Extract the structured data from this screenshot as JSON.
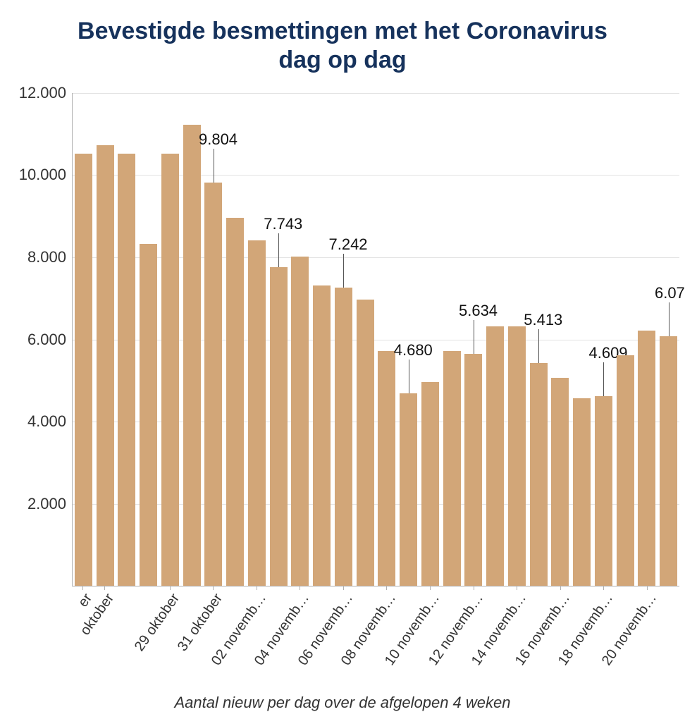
{
  "chart": {
    "type": "bar",
    "title_lines": [
      "Bevestigde besmettingen met het Coronavirus",
      "dag op dag"
    ],
    "title_color": "#16325c",
    "title_fontsize": 34,
    "title_weight": "700",
    "subtitle": "Aantal nieuw per dag over de afgelopen 4 weken",
    "subtitle_fontsize": 22,
    "subtitle_italic": true,
    "background_color": "#ffffff",
    "bar_color": "#d2a678",
    "grid_color": "#e3e3e3",
    "axis_color": "#b0b0b0",
    "label_color": "#333333",
    "value_label_color": "#111111",
    "value_label_fontsize": 22,
    "ylim": [
      0,
      12000
    ],
    "yticks": [
      2000,
      4000,
      6000,
      8000,
      10000,
      12000
    ],
    "ytick_labels": [
      "2.000",
      "4.000",
      "6.000",
      "8.000",
      "10.000",
      "12.000"
    ],
    "ytick_fontsize": 22,
    "xtick_fontsize": 20,
    "xtick_rotation_deg": -55,
    "bars": [
      {
        "x": "er",
        "value": 10500,
        "show_x": true
      },
      {
        "x": "oktober",
        "value": 10700,
        "show_x": true
      },
      {
        "x": "",
        "value": 10500,
        "show_x": false
      },
      {
        "x": "",
        "value": 8300,
        "show_x": false
      },
      {
        "x": "29 oktober",
        "value": 10500,
        "show_x": true
      },
      {
        "x": "",
        "value": 11200,
        "show_x": false
      },
      {
        "x": "31 oktober",
        "value": 9804,
        "show_x": true,
        "callout": "9.804"
      },
      {
        "x": "",
        "value": 8950,
        "show_x": false
      },
      {
        "x": "02 novemb…",
        "value": 8400,
        "show_x": true
      },
      {
        "x": "",
        "value": 7743,
        "show_x": false,
        "callout": "7.743"
      },
      {
        "x": "04 novemb…",
        "value": 8000,
        "show_x": true
      },
      {
        "x": "",
        "value": 7300,
        "show_x": false
      },
      {
        "x": "06 novemb…",
        "value": 7242,
        "show_x": true,
        "callout": "7.242"
      },
      {
        "x": "",
        "value": 6950,
        "show_x": false
      },
      {
        "x": "08 novemb…",
        "value": 5700,
        "show_x": true
      },
      {
        "x": "",
        "value": 4680,
        "show_x": false,
        "callout": "4.680"
      },
      {
        "x": "10 novemb…",
        "value": 4950,
        "show_x": true
      },
      {
        "x": "",
        "value": 5700,
        "show_x": false
      },
      {
        "x": "12 novemb…",
        "value": 5634,
        "show_x": true,
        "callout": "5.634"
      },
      {
        "x": "",
        "value": 6300,
        "show_x": false
      },
      {
        "x": "14 novemb…",
        "value": 6300,
        "show_x": true
      },
      {
        "x": "",
        "value": 5413,
        "show_x": false,
        "callout": "5.413"
      },
      {
        "x": "16 novemb…",
        "value": 5050,
        "show_x": true
      },
      {
        "x": "",
        "value": 4550,
        "show_x": false
      },
      {
        "x": "18 novemb…",
        "value": 4609,
        "show_x": true,
        "callout": "4.609"
      },
      {
        "x": "",
        "value": 5600,
        "show_x": false
      },
      {
        "x": "20 novemb…",
        "value": 6200,
        "show_x": true
      },
      {
        "x": "",
        "value": 6070,
        "show_x": false,
        "callout": "6.07"
      }
    ]
  }
}
